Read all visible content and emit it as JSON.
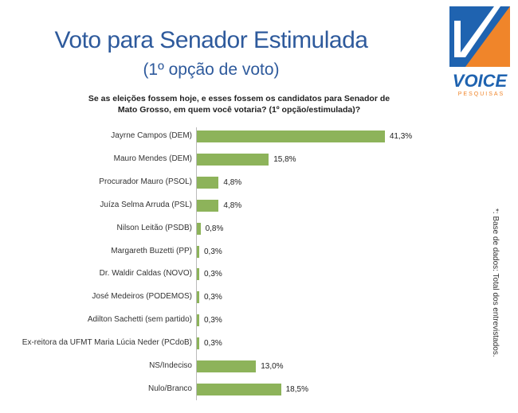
{
  "chart_data": {
    "type": "bar",
    "orientation": "horizontal",
    "title": "Voto para Senador Estimulada",
    "subtitle": "(1º opção de voto)",
    "question": "Se as eleições fossem hoje, e esses fossem os candidatos para Senador de Mato Grosso, em quem você votaria? (1º opção/estimulada)?",
    "categories": [
      "Jayrne Campos (DEM)",
      "Mauro Mendes (DEM)",
      "Procurador Mauro (PSOL)",
      "Juíza Selma Arruda (PSL)",
      "Nilson Leitão (PSDB)",
      "Margareth Buzetti (PP)",
      "Dr. Waldir Caldas (NOVO)",
      "José Medeiros (PODEMOS)",
      "Adilton Sachetti (sem partido)",
      "Ex-reitora da UFMT Maria Lúcia Neder (PCdoB)",
      "NS/Indeciso",
      "Nulo/Branco"
    ],
    "values": [
      41.3,
      15.8,
      4.8,
      4.8,
      0.8,
      0.3,
      0.3,
      0.3,
      0.3,
      0.3,
      13.0,
      18.5
    ],
    "labels": [
      "41,3%",
      "15,8%",
      "4,8%",
      "4,8%",
      "0,8%",
      "0,3%",
      "0,3%",
      "0,3%",
      "0,3%",
      "0,3%",
      "13,0%",
      "18,5%"
    ],
    "bar_color": "#8db35a",
    "note": "*: Base de dados: Total dos entrevistados."
  },
  "logo": {
    "name": "VOICE",
    "sub": "PESQUISAS"
  }
}
